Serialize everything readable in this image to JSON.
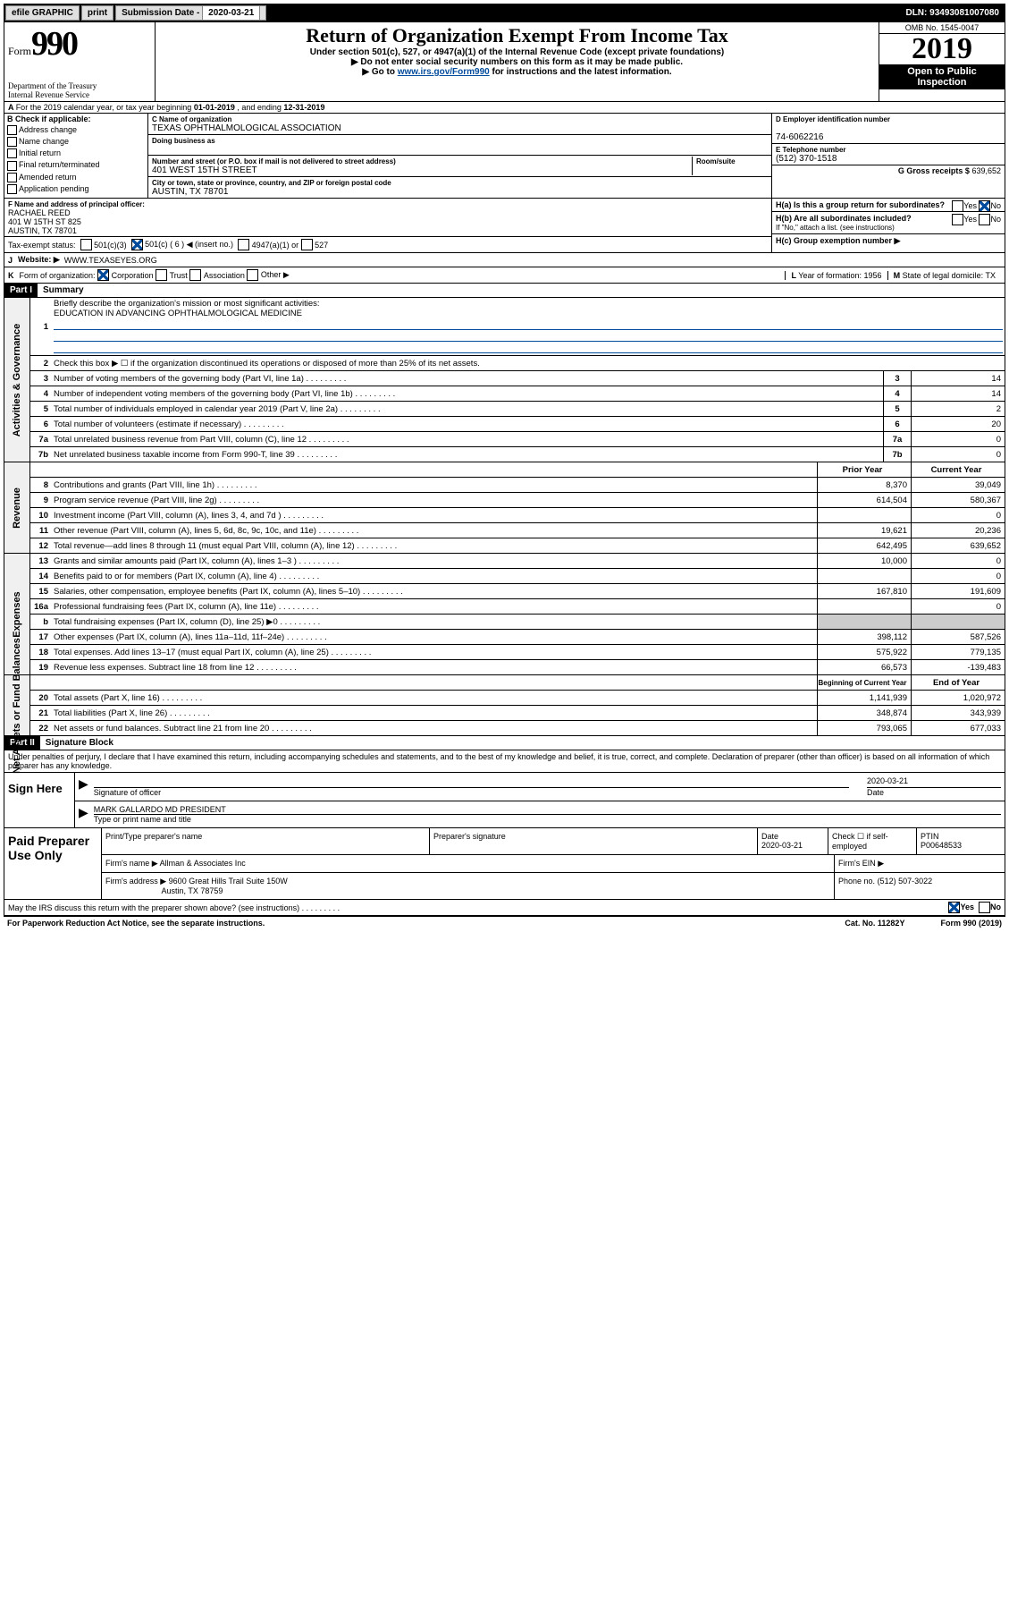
{
  "topbar": {
    "efile": "efile GRAPHIC",
    "print": "print",
    "sublbl": "Submission Date -",
    "subdate": "2020-03-21",
    "dln": "DLN: 93493081007080"
  },
  "hdr": {
    "form": "Form",
    "num": "990",
    "dept": "Department of the Treasury",
    "irs": "Internal Revenue Service",
    "title": "Return of Organization Exempt From Income Tax",
    "sub1": "Under section 501(c), 527, or 4947(a)(1) of the Internal Revenue Code (except private foundations)",
    "sub2": "▶ Do not enter social security numbers on this form as it may be made public.",
    "sub3a": "▶ Go to ",
    "sub3link": "www.irs.gov/Form990",
    "sub3b": " for instructions and the latest information.",
    "omb": "OMB No. 1545-0047",
    "year": "2019",
    "open1": "Open to Public",
    "open2": "Inspection"
  },
  "rowA": {
    "a": "A",
    "txt": "For the 2019 calendar year, or tax year beginning ",
    "d1": "01-01-2019",
    "mid": " , and ending ",
    "d2": "12-31-2019"
  },
  "colB": {
    "hdr": "B Check if applicable:",
    "items": [
      "Address change",
      "Name change",
      "Initial return",
      "Final return/terminated",
      "Amended return",
      "Application pending"
    ]
  },
  "colC": {
    "nlbl": "C Name of organization",
    "name": "TEXAS OPHTHALMOLOGICAL ASSOCIATION",
    "dba": "Doing business as",
    "addrlbl": "Number and street (or P.O. box if mail is not delivered to street address)",
    "room": "Room/suite",
    "addr": "401 WEST 15TH STREET",
    "citylbl": "City or town, state or province, country, and ZIP or foreign postal code",
    "city": "AUSTIN, TX  78701",
    "flbl": "F  Name and address of principal officer:",
    "fname": "RACHAEL REED",
    "faddr1": "401 W 15TH ST 825",
    "faddr2": "AUSTIN, TX  78701"
  },
  "colD": {
    "dlbl": "D Employer identification number",
    "ein": "74-6062216",
    "elbl": "E Telephone number",
    "phone": "(512) 370-1518",
    "glbl": "G Gross receipts $",
    "gross": "639,652",
    "ha": "H(a)  Is this a group return for subordinates?",
    "hb": "H(b)  Are all subordinates included?",
    "hbn": "If \"No,\" attach a list. (see instructions)",
    "hc": "H(c)  Group exemption number ▶",
    "yes": "Yes",
    "no": "No"
  },
  "tax": {
    "lbl": "Tax-exempt status:",
    "a": "501(c)(3)",
    "b": "501(c) ( 6 ) ◀ (insert no.)",
    "c": "4947(a)(1) or",
    "d": "527"
  },
  "web": {
    "j": "J",
    "lbl": "Website: ▶",
    "url": "WWW.TEXASEYES.ORG"
  },
  "rowK": {
    "k": "K",
    "lbl": "Form of organization:",
    "a": "Corporation",
    "b": "Trust",
    "c": "Association",
    "d": "Other ▶",
    "l": "L",
    "ly": "Year of formation:",
    "lyv": "1956",
    "m": "M",
    "ms": "State of legal domicile:",
    "msv": "TX"
  },
  "p1": {
    "part": "Part I",
    "title": "Summary",
    "vlabel": "Activities & Governance",
    "l1": "Briefly describe the organization's mission or most significant activities:",
    "l1v": "EDUCATION IN ADVANCING OPHTHALMOLOGICAL MEDICINE",
    "l2": "Check this box ▶ ☐ if the organization discontinued its operations or disposed of more than 25% of its net assets.",
    "lines": [
      {
        "n": "3",
        "d": "Number of voting members of the governing body (Part VI, line 1a)",
        "v": "14"
      },
      {
        "n": "4",
        "d": "Number of independent voting members of the governing body (Part VI, line 1b)",
        "v": "14"
      },
      {
        "n": "5",
        "d": "Total number of individuals employed in calendar year 2019 (Part V, line 2a)",
        "v": "2"
      },
      {
        "n": "6",
        "d": "Total number of volunteers (estimate if necessary)",
        "v": "20"
      },
      {
        "n": "7a",
        "d": "Total unrelated business revenue from Part VIII, column (C), line 12",
        "v": "0"
      },
      {
        "n": "7b",
        "d": "Net unrelated business taxable income from Form 990-T, line 39",
        "v": "0"
      }
    ]
  },
  "rev": {
    "vlabel": "Revenue",
    "th1": "Prior Year",
    "th2": "Current Year",
    "lines": [
      {
        "n": "8",
        "d": "Contributions and grants (Part VIII, line 1h)",
        "p": "8,370",
        "c": "39,049"
      },
      {
        "n": "9",
        "d": "Program service revenue (Part VIII, line 2g)",
        "p": "614,504",
        "c": "580,367"
      },
      {
        "n": "10",
        "d": "Investment income (Part VIII, column (A), lines 3, 4, and 7d )",
        "p": "",
        "c": "0"
      },
      {
        "n": "11",
        "d": "Other revenue (Part VIII, column (A), lines 5, 6d, 8c, 9c, 10c, and 11e)",
        "p": "19,621",
        "c": "20,236"
      },
      {
        "n": "12",
        "d": "Total revenue—add lines 8 through 11 (must equal Part VIII, column (A), line 12)",
        "p": "642,495",
        "c": "639,652"
      }
    ]
  },
  "exp": {
    "vlabel": "Expenses",
    "lines": [
      {
        "n": "13",
        "d": "Grants and similar amounts paid (Part IX, column (A), lines 1–3 )",
        "p": "10,000",
        "c": "0"
      },
      {
        "n": "14",
        "d": "Benefits paid to or for members (Part IX, column (A), line 4)",
        "p": "",
        "c": "0"
      },
      {
        "n": "15",
        "d": "Salaries, other compensation, employee benefits (Part IX, column (A), lines 5–10)",
        "p": "167,810",
        "c": "191,609"
      },
      {
        "n": "16a",
        "d": "Professional fundraising fees (Part IX, column (A), line 11e)",
        "p": "",
        "c": "0"
      },
      {
        "n": "b",
        "d": "Total fundraising expenses (Part IX, column (D), line 25) ▶0",
        "p": "—",
        "c": "—"
      },
      {
        "n": "17",
        "d": "Other expenses (Part IX, column (A), lines 11a–11d, 11f–24e)",
        "p": "398,112",
        "c": "587,526"
      },
      {
        "n": "18",
        "d": "Total expenses. Add lines 13–17 (must equal Part IX, column (A), line 25)",
        "p": "575,922",
        "c": "779,135"
      },
      {
        "n": "19",
        "d": "Revenue less expenses. Subtract line 18 from line 12",
        "p": "66,573",
        "c": "-139,483"
      }
    ]
  },
  "net": {
    "vlabel": "Net Assets or Fund Balances",
    "th1": "Beginning of Current Year",
    "th2": "End of Year",
    "lines": [
      {
        "n": "20",
        "d": "Total assets (Part X, line 16)",
        "p": "1,141,939",
        "c": "1,020,972"
      },
      {
        "n": "21",
        "d": "Total liabilities (Part X, line 26)",
        "p": "348,874",
        "c": "343,939"
      },
      {
        "n": "22",
        "d": "Net assets or fund balances. Subtract line 21 from line 20",
        "p": "793,065",
        "c": "677,033"
      }
    ]
  },
  "p2": {
    "part": "Part II",
    "title": "Signature Block",
    "decl": "Under penalties of perjury, I declare that I have examined this return, including accompanying schedules and statements, and to the best of my knowledge and belief, it is true, correct, and complete. Declaration of preparer (other than officer) is based on all information of which preparer has any knowledge."
  },
  "sign": {
    "l": "Sign Here",
    "sig": "Signature of officer",
    "date": "2020-03-21",
    "datel": "Date",
    "name": "MARK GALLARDO MD  PRESIDENT",
    "namel": "Type or print name and title"
  },
  "paid": {
    "l": "Paid Preparer Use Only",
    "h1": "Print/Type preparer's name",
    "h2": "Preparer's signature",
    "h3": "Date",
    "h3v": "2020-03-21",
    "h4": "Check ☐ if self-employed",
    "h5": "PTIN",
    "h5v": "P00648533",
    "fn": "Firm's name    ▶",
    "fnv": "Allman & Associates Inc",
    "fein": "Firm's EIN ▶",
    "fa": "Firm's address ▶",
    "fav1": "9600 Great Hills Trail Suite 150W",
    "fav2": "Austin, TX  78759",
    "ph": "Phone no.",
    "phv": "(512) 507-3022"
  },
  "may": {
    "txt": "May the IRS discuss this return with the preparer shown above? (see instructions)",
    "yes": "Yes",
    "no": "No"
  },
  "footer": {
    "pra": "For Paperwork Reduction Act Notice, see the separate instructions.",
    "cat": "Cat. No. 11282Y",
    "form": "Form 990 (2019)"
  }
}
